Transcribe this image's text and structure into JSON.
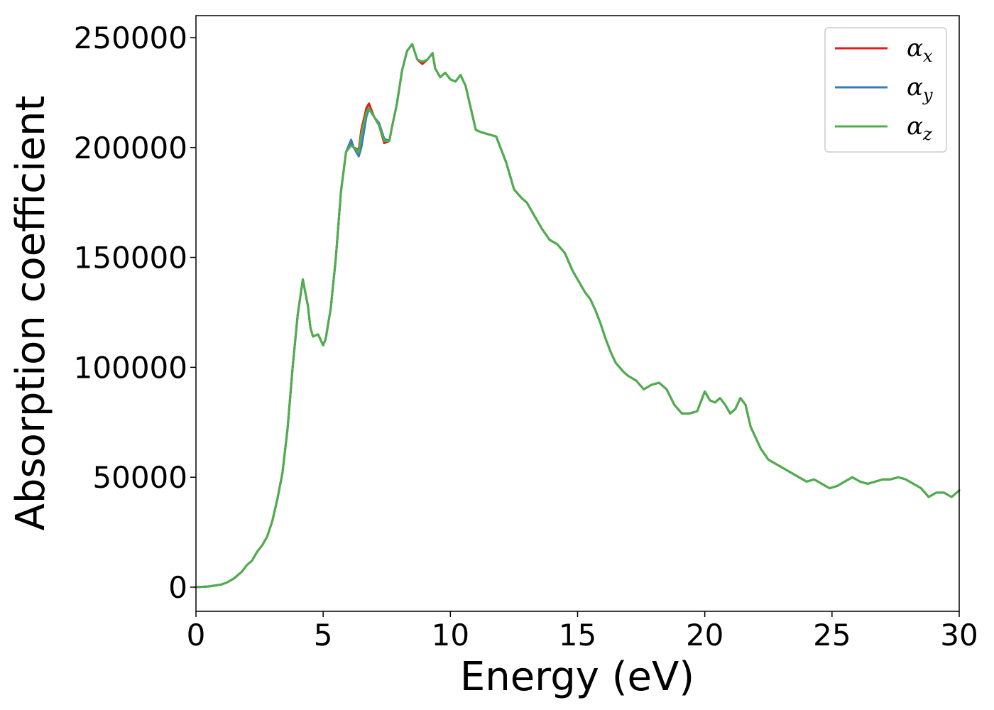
{
  "chart_data": {
    "type": "line",
    "title": "",
    "xlabel": "Energy (eV)",
    "ylabel": "Absorption coefficient",
    "xlim": [
      0,
      30
    ],
    "ylim": [
      -11000,
      260000
    ],
    "xticks": [
      0,
      5,
      10,
      15,
      20,
      25,
      30
    ],
    "yticks": [
      0,
      50000,
      100000,
      150000,
      200000,
      250000
    ],
    "grid": false,
    "legend_position": "top-right",
    "series": [
      {
        "name": "α_x",
        "label_base": "α",
        "label_sub": "x",
        "color": "#e41a1c",
        "x": [
          0,
          0.5,
          1,
          1.2,
          1.5,
          1.8,
          2,
          2.2,
          2.4,
          2.6,
          2.8,
          3,
          3.2,
          3.4,
          3.6,
          3.8,
          4,
          4.2,
          4.4,
          4.5,
          4.6,
          4.8,
          5,
          5.1,
          5.3,
          5.5,
          5.7,
          5.9,
          6.1,
          6.2,
          6.4,
          6.5,
          6.7,
          6.8,
          7,
          7.2,
          7.4,
          7.6,
          7.7,
          7.9,
          8.1,
          8.3,
          8.5,
          8.7,
          8.9,
          9.1,
          9.3,
          9.4,
          9.6,
          9.8,
          10,
          10.2,
          10.4,
          10.6,
          10.8,
          11,
          11.2,
          11.5,
          11.8,
          12,
          12.2,
          12.5,
          12.8,
          13,
          13.3,
          13.6,
          13.9,
          14.2,
          14.5,
          14.8,
          15.1,
          15.3,
          15.5,
          15.7,
          15.9,
          16.1,
          16.3,
          16.5,
          16.8,
          17,
          17.3,
          17.6,
          17.9,
          18.2,
          18.5,
          18.8,
          19.1,
          19.4,
          19.7,
          20,
          20.2,
          20.4,
          20.6,
          20.8,
          21,
          21.2,
          21.4,
          21.6,
          21.8,
          22,
          22.2,
          22.5,
          22.8,
          23.1,
          23.4,
          23.7,
          24,
          24.3,
          24.6,
          24.9,
          25.2,
          25.5,
          25.8,
          26.1,
          26.4,
          26.7,
          27,
          27.3,
          27.6,
          27.9,
          28.2,
          28.5,
          28.8,
          29.1,
          29.4,
          29.7,
          30
        ],
        "y": [
          0,
          300,
          1200,
          2000,
          4000,
          7000,
          10000,
          12000,
          16000,
          19000,
          23000,
          30000,
          40000,
          52000,
          72000,
          100000,
          124000,
          140000,
          128000,
          118000,
          114000,
          115000,
          110000,
          113000,
          127000,
          150000,
          180000,
          198000,
          202000,
          200000,
          199000,
          208000,
          218000,
          220000,
          214000,
          210000,
          202000,
          203000,
          209000,
          220000,
          235000,
          244000,
          247000,
          240000,
          238000,
          240000,
          243000,
          236000,
          232000,
          234000,
          231000,
          230000,
          233000,
          228000,
          218000,
          208000,
          207000,
          206000,
          205000,
          199000,
          193000,
          181000,
          177000,
          175000,
          169000,
          163000,
          158000,
          156000,
          152000,
          144000,
          138000,
          134000,
          131000,
          126000,
          120000,
          113000,
          107000,
          102000,
          98000,
          96000,
          94000,
          90000,
          92000,
          93000,
          90000,
          83000,
          79000,
          79000,
          80000,
          89000,
          85000,
          84000,
          86000,
          83000,
          79000,
          81000,
          86000,
          83000,
          73000,
          68000,
          63000,
          58000,
          56000,
          54000,
          52000,
          50000,
          48000,
          49000,
          47000,
          45000,
          46000,
          48000,
          50000,
          48000,
          47000,
          48000,
          49000,
          49000,
          50000,
          49000,
          47000,
          45000,
          41000,
          43000,
          43000,
          41000,
          44000
        ]
      },
      {
        "name": "α_y",
        "label_base": "α",
        "label_sub": "y",
        "color": "#377eb8",
        "x": [
          0,
          0.5,
          1,
          1.2,
          1.5,
          1.8,
          2,
          2.2,
          2.4,
          2.6,
          2.8,
          3,
          3.2,
          3.4,
          3.6,
          3.8,
          4,
          4.2,
          4.4,
          4.5,
          4.6,
          4.8,
          5,
          5.1,
          5.3,
          5.5,
          5.7,
          5.9,
          6.1,
          6.2,
          6.4,
          6.5,
          6.7,
          6.8,
          7,
          7.2,
          7.4,
          7.6,
          7.7,
          7.9,
          8.1,
          8.3,
          8.5,
          8.7,
          8.9,
          9.1,
          9.3,
          9.4,
          9.6,
          9.8,
          10,
          10.2,
          10.4,
          10.6,
          10.8,
          11,
          11.2,
          11.5,
          11.8,
          12,
          12.2,
          12.5,
          12.8,
          13,
          13.3,
          13.6,
          13.9,
          14.2,
          14.5,
          14.8,
          15.1,
          15.3,
          15.5,
          15.7,
          15.9,
          16.1,
          16.3,
          16.5,
          16.8,
          17,
          17.3,
          17.6,
          17.9,
          18.2,
          18.5,
          18.8,
          19.1,
          19.4,
          19.7,
          20,
          20.2,
          20.4,
          20.6,
          20.8,
          21,
          21.2,
          21.4,
          21.6,
          21.8,
          22,
          22.2,
          22.5,
          22.8,
          23.1,
          23.4,
          23.7,
          24,
          24.3,
          24.6,
          24.9,
          25.2,
          25.5,
          25.8,
          26.1,
          26.4,
          26.7,
          27,
          27.3,
          27.6,
          27.9,
          28.2,
          28.5,
          28.8,
          29.1,
          29.4,
          29.7,
          30
        ],
        "y": [
          0,
          300,
          1200,
          2000,
          4000,
          7000,
          10000,
          12000,
          16000,
          19000,
          23000,
          30000,
          40000,
          52000,
          72000,
          100000,
          124000,
          140000,
          128000,
          118000,
          114000,
          115000,
          110000,
          113000,
          127000,
          150000,
          180000,
          198000,
          203500,
          200000,
          196000,
          200000,
          214000,
          217500,
          214000,
          211000,
          204000,
          203000,
          209000,
          220000,
          235000,
          244000,
          247000,
          240000,
          239000,
          240000,
          243000,
          236000,
          232000,
          234000,
          231000,
          230000,
          233000,
          228000,
          218000,
          208000,
          207000,
          206000,
          205000,
          199000,
          193000,
          181000,
          177000,
          175000,
          169000,
          163000,
          158000,
          156000,
          152000,
          144000,
          138000,
          134000,
          131000,
          126000,
          120000,
          113000,
          107000,
          102000,
          98000,
          96000,
          94000,
          90000,
          92000,
          93000,
          90000,
          83000,
          79000,
          79000,
          80000,
          89000,
          85000,
          84000,
          86000,
          83000,
          79000,
          81000,
          86000,
          83000,
          73000,
          68000,
          63000,
          58000,
          56000,
          54000,
          52000,
          50000,
          48000,
          49000,
          47000,
          45000,
          46000,
          48000,
          50000,
          48000,
          47000,
          48000,
          49000,
          49000,
          50000,
          49000,
          47000,
          45000,
          41000,
          43000,
          43000,
          41000,
          44000
        ]
      },
      {
        "name": "α_z",
        "label_base": "α",
        "label_sub": "z",
        "color": "#4daf4a",
        "x": [
          0,
          0.5,
          1,
          1.2,
          1.5,
          1.8,
          2,
          2.2,
          2.4,
          2.6,
          2.8,
          3,
          3.2,
          3.4,
          3.6,
          3.8,
          4,
          4.2,
          4.4,
          4.5,
          4.6,
          4.8,
          5,
          5.1,
          5.3,
          5.5,
          5.7,
          5.9,
          6.1,
          6.2,
          6.4,
          6.5,
          6.7,
          6.8,
          7,
          7.2,
          7.4,
          7.6,
          7.7,
          7.9,
          8.1,
          8.3,
          8.5,
          8.7,
          8.9,
          9.1,
          9.3,
          9.4,
          9.6,
          9.8,
          10,
          10.2,
          10.4,
          10.6,
          10.8,
          11,
          11.2,
          11.5,
          11.8,
          12,
          12.2,
          12.5,
          12.8,
          13,
          13.3,
          13.6,
          13.9,
          14.2,
          14.5,
          14.8,
          15.1,
          15.3,
          15.5,
          15.7,
          15.9,
          16.1,
          16.3,
          16.5,
          16.8,
          17,
          17.3,
          17.6,
          17.9,
          18.2,
          18.5,
          18.8,
          19.1,
          19.4,
          19.7,
          20,
          20.2,
          20.4,
          20.6,
          20.8,
          21,
          21.2,
          21.4,
          21.6,
          21.8,
          22,
          22.2,
          22.5,
          22.8,
          23.1,
          23.4,
          23.7,
          24,
          24.3,
          24.6,
          24.9,
          25.2,
          25.5,
          25.8,
          26.1,
          26.4,
          26.7,
          27,
          27.3,
          27.6,
          27.9,
          28.2,
          28.5,
          28.8,
          29.1,
          29.4,
          29.7,
          30
        ],
        "y": [
          0,
          300,
          1200,
          2000,
          4000,
          7000,
          10000,
          12000,
          16000,
          19000,
          23000,
          30000,
          40000,
          52000,
          72000,
          100000,
          124000,
          140000,
          128000,
          118000,
          114000,
          115000,
          110000,
          113000,
          127000,
          150000,
          180000,
          198000,
          201000,
          200000,
          198000,
          206000,
          216000,
          218000,
          214000,
          210000,
          203000,
          203000,
          209000,
          220000,
          235000,
          244000,
          247000,
          240000,
          239000,
          240000,
          243000,
          236000,
          232000,
          234000,
          231000,
          230000,
          233000,
          228000,
          218000,
          208000,
          207000,
          206000,
          205000,
          199000,
          193000,
          181000,
          177000,
          175000,
          169000,
          163000,
          158000,
          156000,
          152000,
          144000,
          138000,
          134000,
          131000,
          126000,
          120000,
          113000,
          107000,
          102000,
          98000,
          96000,
          94000,
          90000,
          92000,
          93000,
          90000,
          83000,
          79000,
          79000,
          80000,
          89000,
          85000,
          84000,
          86000,
          83000,
          79000,
          81000,
          86000,
          83000,
          73000,
          68000,
          63000,
          58000,
          56000,
          54000,
          52000,
          50000,
          48000,
          49000,
          47000,
          45000,
          46000,
          48000,
          50000,
          48000,
          47000,
          48000,
          49000,
          49000,
          50000,
          49000,
          47000,
          45000,
          41000,
          43000,
          43000,
          41000,
          44000
        ]
      }
    ]
  }
}
